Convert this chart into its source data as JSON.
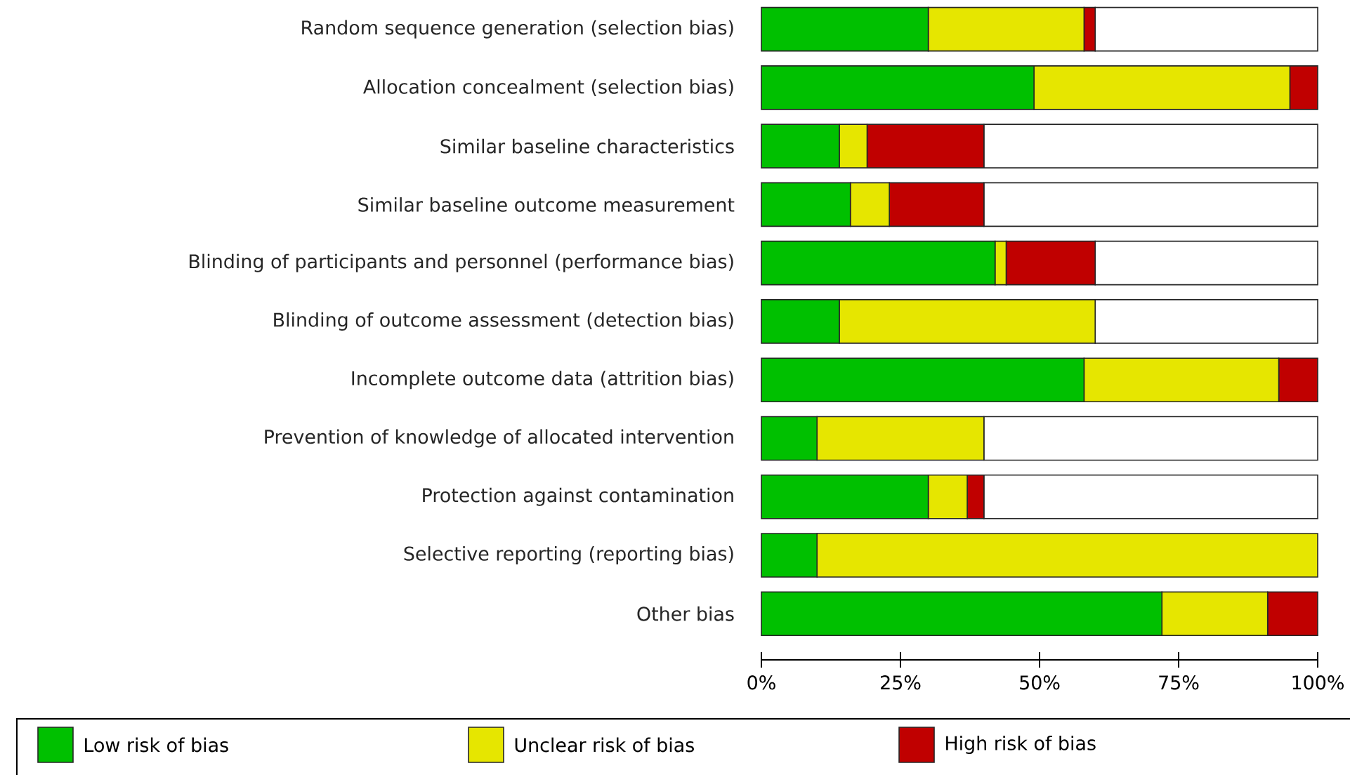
{
  "chart_data": {
    "type": "bar",
    "orientation": "horizontal",
    "stacked": true,
    "categories": [
      "Random sequence generation (selection bias)",
      "Allocation concealment (selection bias)",
      "Similar baseline characteristics",
      "Similar baseline outcome measurement",
      "Blinding of participants and personnel (performance bias)",
      "Blinding of outcome assessment (detection bias)",
      "Incomplete outcome data (attrition bias)",
      "Prevention of knowledge of allocated intervention",
      "Protection against contamination",
      "Selective reporting (reporting bias)",
      "Other bias"
    ],
    "series": [
      {
        "name": "Low risk of bias",
        "color": "#00c000",
        "values": [
          30,
          49,
          14,
          16,
          42,
          14,
          58,
          10,
          30,
          10,
          72
        ]
      },
      {
        "name": "Unclear risk of bias",
        "color": "#e6e600",
        "values": [
          28,
          46,
          5,
          7,
          2,
          46,
          35,
          30,
          7,
          90,
          19
        ]
      },
      {
        "name": "High risk of bias",
        "color": "#c00000",
        "values": [
          2,
          5,
          21,
          17,
          16,
          0,
          7,
          0,
          3,
          0,
          9
        ]
      },
      {
        "color": "#ffffff",
        "values": [
          40,
          0,
          60,
          60,
          40,
          40,
          0,
          60,
          60,
          0,
          0
        ]
      }
    ],
    "xlim": [
      0,
      100
    ],
    "xticks": [
      {
        "value": 0,
        "label": "0%"
      },
      {
        "value": 25,
        "label": "25%"
      },
      {
        "value": 50,
        "label": "50%"
      },
      {
        "value": 75,
        "label": "75%"
      },
      {
        "value": 100,
        "label": "100%"
      }
    ],
    "legend": "bottom"
  }
}
